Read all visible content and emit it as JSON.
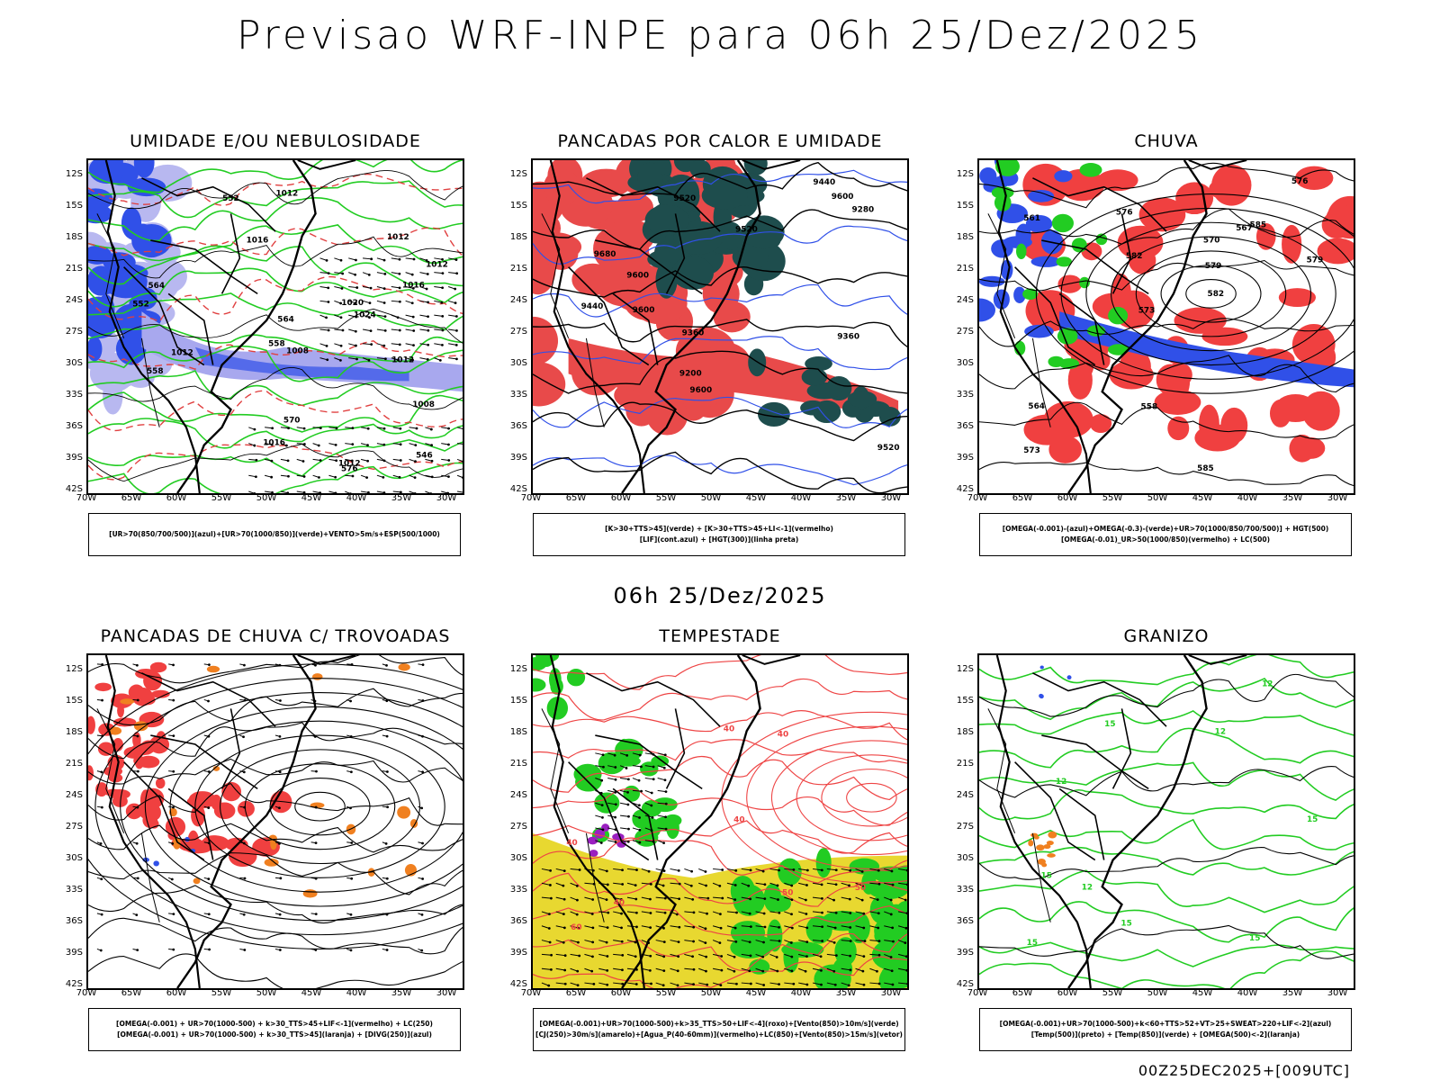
{
  "title": "Previsao WRF-INPE  para 06h 25/Dez/2025",
  "mid_title": "06h 25/Dez/2025",
  "footer": "00Z25DEC2025+[009UTC]",
  "lat_ticks": [
    "12S",
    "15S",
    "18S",
    "21S",
    "24S",
    "27S",
    "30S",
    "33S",
    "36S",
    "39S",
    "42S"
  ],
  "lon_ticks": [
    "70W",
    "65W",
    "60W",
    "55W",
    "50W",
    "45W",
    "40W",
    "35W",
    "30W"
  ],
  "colors": {
    "blue": "#3050e8",
    "green": "#22cc22",
    "red": "#ee3333",
    "teal": "#1e4d4d",
    "orange": "#f08020",
    "yellow": "#e8d830",
    "purple": "#9a20c0"
  },
  "panels": [
    {
      "title": "UMIDADE E/OU NEBULOSIDADE",
      "legend": [
        "[UR>70(850/700/500)](azul)+[UR>70(1000/850)](verde)+VENTO>5m/s+ESP(500/1000)"
      ],
      "contour_labels": [
        "1008",
        "1012",
        "1012",
        "1016",
        "1016",
        "1012",
        "1012",
        "1012",
        "1008",
        "1016",
        "1012",
        "1020",
        "1024",
        "576",
        "570",
        "564",
        "558",
        "552",
        "546",
        "552",
        "558",
        "564"
      ]
    },
    {
      "title": "PANCADAS POR CALOR E UMIDADE",
      "legend": [
        "[K>30+TTS>45](verde) + [K>30+TTS>45+LI<-1](vermelho)",
        "[LIF](cont.azul) + [HGT(300)](linha preta)"
      ],
      "contour_labels": [
        "9600",
        "9600",
        "9600",
        "9680",
        "9600",
        "9520",
        "9520",
        "9440",
        "9440",
        "9360",
        "9360",
        "9280",
        "9200",
        "9520"
      ]
    },
    {
      "title": "CHUVA",
      "legend": [
        "[OMEGA(-0.001)-(azul)+OMEGA(-0.3)-(verde)+UR>70(1000/850/700/500)] + HGT(500)",
        "[OMEGA(-0.01)_UR>50(1000/850)(vermelho) + LC(500)"
      ],
      "contour_labels": [
        "585",
        "582",
        "579",
        "576",
        "573",
        "570",
        "567",
        "564",
        "561",
        "558",
        "585",
        "582",
        "576",
        "573",
        "579"
      ]
    },
    {
      "title": "PANCADAS DE CHUVA C/ TROVOADAS",
      "legend": [
        "[OMEGA(-0.001) + UR>70(1000-500) + k>30_TTS>45+LIF<-1](vermelho) + LC(250)",
        "[OMEGA(-0.001) + UR>70(1000-500) + k>30_TTS>45](laranja) + [DIVG(250)](azul)"
      ],
      "contour_labels": []
    },
    {
      "title": "TEMPESTADE",
      "legend": [
        "[OMEGA(-0.001)+UR>70(1000-500)+k>35_TTS>50+LIF<-4](roxo)+[Vento(850)>10m/s](verde)",
        "[CJ(250)>30m/s](amarelo)+[Agua_P(40-60mm)](vermelho)+LC(850)+[Vento(850)>15m/s](vetor)"
      ],
      "contour_labels": [
        "40",
        "40",
        "50",
        "60",
        "40",
        "40",
        "50",
        "40"
      ]
    },
    {
      "title": "GRANIZO",
      "legend": [
        "[OMEGA(-0.001)+UR>70(1000-500)+k<60+TTS>52+VT>25+SWEAT>220+LIF<-2](azul)",
        "[Temp(500)](preto) + [Temp(850)](verde) + [OMEGA(500)<-2](laranja)"
      ],
      "contour_labels": [
        "12",
        "12",
        "15",
        "15",
        "12",
        "15",
        "15",
        "15",
        "15",
        "12"
      ]
    }
  ]
}
